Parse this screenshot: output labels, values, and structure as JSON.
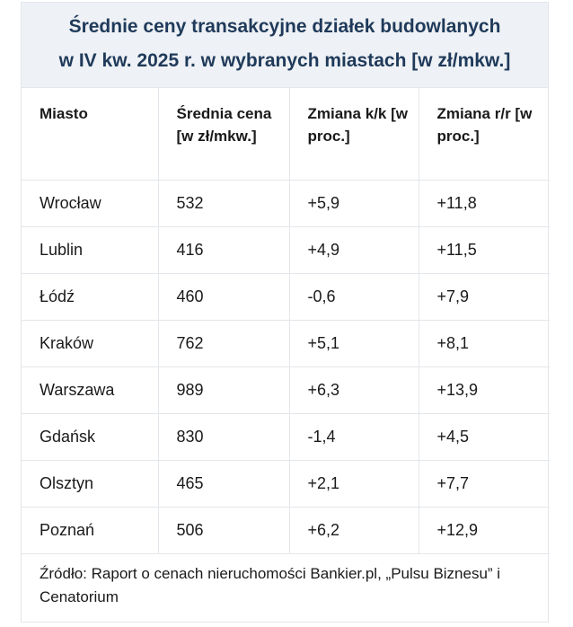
{
  "title": {
    "line1": "Średnie ceny transakcyjne działek budowlanych",
    "line2": "w IV kw. 2025 r. w wybranych miastach [w zł/mkw.]"
  },
  "headers": {
    "city": "Miasto",
    "avg_price": "Średnia cena [w zł/mkw.]",
    "qoq": "Zmiana k/k [w proc.]",
    "yoy": "Zmiana r/r [w proc.]"
  },
  "rows": [
    {
      "city": "Wrocław",
      "avg_price": "532",
      "qoq": "+5,9",
      "yoy": "+11,8"
    },
    {
      "city": "Lublin",
      "avg_price": "416",
      "qoq": "+4,9",
      "yoy": "+11,5"
    },
    {
      "city": "Łódź",
      "avg_price": "460",
      "qoq": "-0,6",
      "yoy": "+7,9"
    },
    {
      "city": "Kraków",
      "avg_price": "762",
      "qoq": "+5,1",
      "yoy": "+8,1"
    },
    {
      "city": "Warszawa",
      "avg_price": "989",
      "qoq": "+6,3",
      "yoy": "+13,9"
    },
    {
      "city": "Gdańsk",
      "avg_price": "830",
      "qoq": "-1,4",
      "yoy": "+4,5"
    },
    {
      "city": "Olsztyn",
      "avg_price": "465",
      "qoq": "+2,1",
      "yoy": "+7,7"
    },
    {
      "city": "Poznań",
      "avg_price": "506",
      "qoq": "+6,2",
      "yoy": "+12,9"
    }
  ],
  "source": "Źródło: Raport o cenach nieruchomości Bankier.pl, „Pulsu Biznesu” i Cenatorium"
}
